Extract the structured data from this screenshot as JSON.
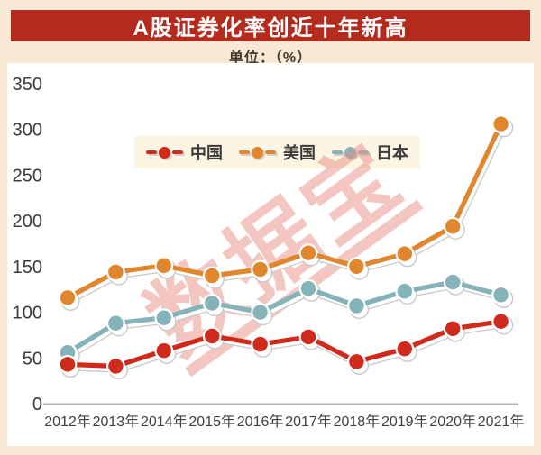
{
  "banner": {
    "title": "A股证券化率创近十年新高"
  },
  "unit_label": "单位：（%）",
  "watermark": "数据宝",
  "colors": {
    "banner_bg": "#b22b1d",
    "page_bg": "#f7e9d3",
    "panel_bg": "#ffffff",
    "legend_bg": "#fcf5e4",
    "china_red": "#d02a1c",
    "usa_orange": "#e0872e",
    "japan_teal": "#84b3b9",
    "watermark_pink": "#e89288",
    "axis_line": "#b4b4b4",
    "axis_text": "#3c3c3c"
  },
  "chart_data": {
    "type": "line",
    "title": "A股证券化率创近十年新高",
    "unit": "%",
    "categories": [
      "2012年",
      "2013年",
      "2014年",
      "2015年",
      "2016年",
      "2017年",
      "2018年",
      "2019年",
      "2020年",
      "2021年"
    ],
    "series": [
      {
        "name": "中国",
        "color": "#d02a1c",
        "values": [
          43,
          41,
          58,
          74,
          65,
          73,
          46,
          60,
          82,
          90
        ]
      },
      {
        "name": "美国",
        "color": "#e0872e",
        "values": [
          116,
          144,
          151,
          140,
          147,
          165,
          150,
          164,
          194,
          306
        ]
      },
      {
        "name": "日本",
        "color": "#84b3b9",
        "values": [
          56,
          88,
          94,
          110,
          100,
          126,
          107,
          123,
          133,
          119
        ]
      }
    ],
    "ylim": [
      0,
      350
    ],
    "yticks": [
      0,
      50,
      100,
      150,
      200,
      250,
      300,
      350
    ],
    "grid": false,
    "legend_position": "top-center-inside"
  }
}
